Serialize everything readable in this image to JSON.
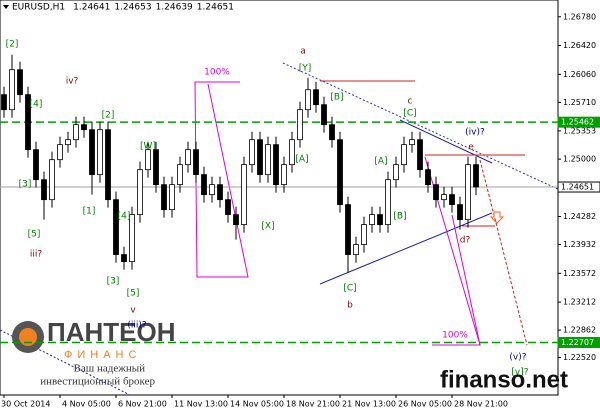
{
  "chart_data": {
    "type": "candlestick",
    "title": "EURUSD,H1",
    "header_values": [
      1.24641,
      1.24653,
      1.24639,
      1.24651
    ],
    "bull_color": "#ffffff",
    "bear_color": "#000000",
    "categories": [
      "30 Oct 2014",
      null,
      null,
      null,
      null,
      null,
      null,
      "4 Nov 05:00",
      null,
      null,
      null,
      null,
      null,
      null,
      "6 Nov 21:00",
      null,
      null,
      null,
      null,
      null,
      null,
      "11 Nov 13:00",
      null,
      null,
      null,
      null,
      null,
      null,
      "14 Nov 05:00",
      null,
      null,
      null,
      null,
      null,
      null,
      "18 Nov 21:00",
      null,
      null,
      null,
      null,
      null,
      null,
      "21 Nov 13:00",
      null,
      null,
      null,
      null,
      null,
      null,
      "26 Nov 05:00",
      null,
      null,
      null,
      null,
      null,
      null,
      "28 Nov 21:00",
      null,
      null,
      null
    ],
    "open": [
      1.25806,
      1.25618,
      1.26118,
      1.25806,
      1.25118,
      1.24743,
      1.24493,
      1.24993,
      1.25181,
      1.25243,
      1.25431,
      1.25368,
      1.24806,
      1.25368,
      1.24493,
      1.23806,
      1.23718,
      1.24306,
      1.24868,
      1.25118,
      1.24681,
      1.24368,
      1.24681,
      1.24931,
      1.25118,
      1.24806,
      1.24556,
      1.24681,
      1.24493,
      1.24306,
      1.24181,
      1.24931,
      1.25243,
      1.24806,
      1.25181,
      1.24681,
      1.24931,
      1.25243,
      1.25618,
      1.25868,
      1.25681,
      1.25431,
      1.25243,
      1.24431,
      1.23806,
      1.23931,
      1.24181,
      1.24306,
      1.24181,
      1.24743,
      1.24931,
      1.25181,
      1.25243,
      1.24868,
      1.24681,
      1.24493,
      1.24556,
      1.24431,
      1.24243,
      1.24931
    ],
    "high": [
      1.25906,
      1.26306,
      1.26218,
      1.25906,
      1.25218,
      1.24843,
      1.25093,
      1.25281,
      1.25343,
      1.25531,
      1.25531,
      1.25468,
      1.25468,
      1.25468,
      1.24593,
      1.23906,
      1.24406,
      1.24968,
      1.25218,
      1.25218,
      1.24781,
      1.24781,
      1.25031,
      1.25218,
      1.25218,
      1.24906,
      1.24781,
      1.24781,
      1.24593,
      1.24406,
      1.25031,
      1.25343,
      1.25343,
      1.25281,
      1.25281,
      1.25031,
      1.25343,
      1.25718,
      1.26018,
      1.25968,
      1.25781,
      1.25531,
      1.25343,
      1.24531,
      1.24031,
      1.24281,
      1.24406,
      1.24406,
      1.24843,
      1.25031,
      1.25281,
      1.25343,
      1.25343,
      1.24968,
      1.24781,
      1.24656,
      1.24656,
      1.24531,
      1.25031,
      1.25031
    ],
    "low": [
      1.25518,
      1.25518,
      1.25706,
      1.25018,
      1.24643,
      1.24243,
      1.24393,
      1.24893,
      1.25081,
      1.25143,
      1.25268,
      1.24556,
      1.24706,
      1.24393,
      1.23706,
      1.23618,
      1.23618,
      1.24206,
      1.24768,
      1.24581,
      1.24268,
      1.24268,
      1.24581,
      1.24831,
      1.24706,
      1.24456,
      1.24456,
      1.24393,
      1.24206,
      1.23993,
      1.24081,
      1.24831,
      1.24706,
      1.24706,
      1.24581,
      1.24581,
      1.24831,
      1.25143,
      1.25518,
      1.25581,
      1.25331,
      1.25143,
      1.24331,
      1.23581,
      1.23706,
      1.23831,
      1.24081,
      1.24081,
      1.24081,
      1.24643,
      1.24831,
      1.25081,
      1.24768,
      1.24581,
      1.24393,
      1.24393,
      1.24331,
      1.24118,
      1.24143,
      1.24551
    ],
    "close": [
      1.25618,
      1.26118,
      1.25806,
      1.25118,
      1.24743,
      1.24493,
      1.24993,
      1.25181,
      1.25243,
      1.25431,
      1.25368,
      1.24806,
      1.25368,
      1.24493,
      1.23806,
      1.23718,
      1.24306,
      1.24868,
      1.25118,
      1.24681,
      1.24368,
      1.24681,
      1.24931,
      1.25118,
      1.24806,
      1.24556,
      1.24681,
      1.24493,
      1.24306,
      1.24181,
      1.24931,
      1.25243,
      1.24806,
      1.25181,
      1.24681,
      1.24931,
      1.25243,
      1.25618,
      1.25868,
      1.25681,
      1.25431,
      1.25243,
      1.24431,
      1.23806,
      1.23931,
      1.24181,
      1.24306,
      1.24181,
      1.24743,
      1.24931,
      1.25181,
      1.25243,
      1.24868,
      1.24681,
      1.24493,
      1.24556,
      1.24431,
      1.24243,
      1.24931,
      1.24651
    ],
    "ylim": [
      1.2205,
      1.2699
    ],
    "yticks": [
      {
        "value": 1.2678,
        "label": "1.26780"
      },
      {
        "value": 1.2642,
        "label": "1.26420"
      },
      {
        "value": 1.2606,
        "label": "1.26060"
      },
      {
        "value": 1.2571,
        "label": "1.25710"
      },
      1.25353,
      {
        "value": 1.25,
        "label": "1.25000"
      },
      1.24282,
      1.23932,
      1.23572,
      1.23212,
      1.22862,
      {
        "value": 1.2252,
        "label": "1.22520"
      }
    ],
    "levels": [
      {
        "value": 1.25462,
        "color": "#00a000"
      },
      {
        "value": 1.24651,
        "color": "#a0a0a0"
      },
      {
        "value": 1.22707,
        "color": "#00a000"
      }
    ],
    "annotations": [
      {
        "text": "[2]",
        "color": "#008000"
      },
      {
        "text": "[4]",
        "color": "#008000"
      },
      {
        "text": "[3]",
        "color": "#008000"
      },
      {
        "text": "[5]",
        "color": "#008000"
      },
      {
        "text": "iii?",
        "color": "#8b0000"
      },
      {
        "text": "[1]",
        "color": "#008000"
      },
      {
        "text": "[2]",
        "color": "#008000"
      },
      {
        "text": "iv?",
        "color": "#8b0000"
      },
      {
        "text": "[W]",
        "color": "#008000"
      },
      {
        "text": "[4]",
        "color": "#008000"
      },
      {
        "text": "[3]",
        "color": "#008000"
      },
      {
        "text": "[5]",
        "color": "#008000"
      },
      {
        "text": "v",
        "color": "#8b0000"
      },
      {
        "text": "(iii)?",
        "color": "#000080"
      },
      {
        "text": "[X]",
        "color": "#008000"
      },
      {
        "text": "[Y]",
        "color": "#008000"
      },
      {
        "text": "100%",
        "color": "#e000e0"
      },
      {
        "text": "a",
        "color": "#8b0000"
      },
      {
        "text": "[B]",
        "color": "#008000"
      },
      {
        "text": "[A]",
        "color": "#008000"
      },
      {
        "text": "b",
        "color": "#8b0000"
      },
      {
        "text": "[C]",
        "color": "#008000"
      },
      {
        "text": "c",
        "color": "#8b0000"
      },
      {
        "text": "[C]",
        "color": "#008000"
      },
      {
        "text": "[A]",
        "color": "#008000"
      },
      {
        "text": "[B]",
        "color": "#008000"
      },
      {
        "text": "(iv)?",
        "color": "#000080"
      },
      {
        "text": "e",
        "color": "#8b0000"
      },
      {
        "text": "d?",
        "color": "#8b0000"
      },
      {
        "text": "100%",
        "color": "#e000e0"
      },
      {
        "text": "(v)?",
        "color": "#000080"
      },
      {
        "text": "[v]?",
        "color": "#008000"
      }
    ]
  },
  "logo": {
    "name": "ПАНТЕОН",
    "sub": "ФИНАНС",
    "tagline1": "Ваш надежный",
    "tagline2": "инвестиционный брокер"
  },
  "watermark": "finanso.net"
}
